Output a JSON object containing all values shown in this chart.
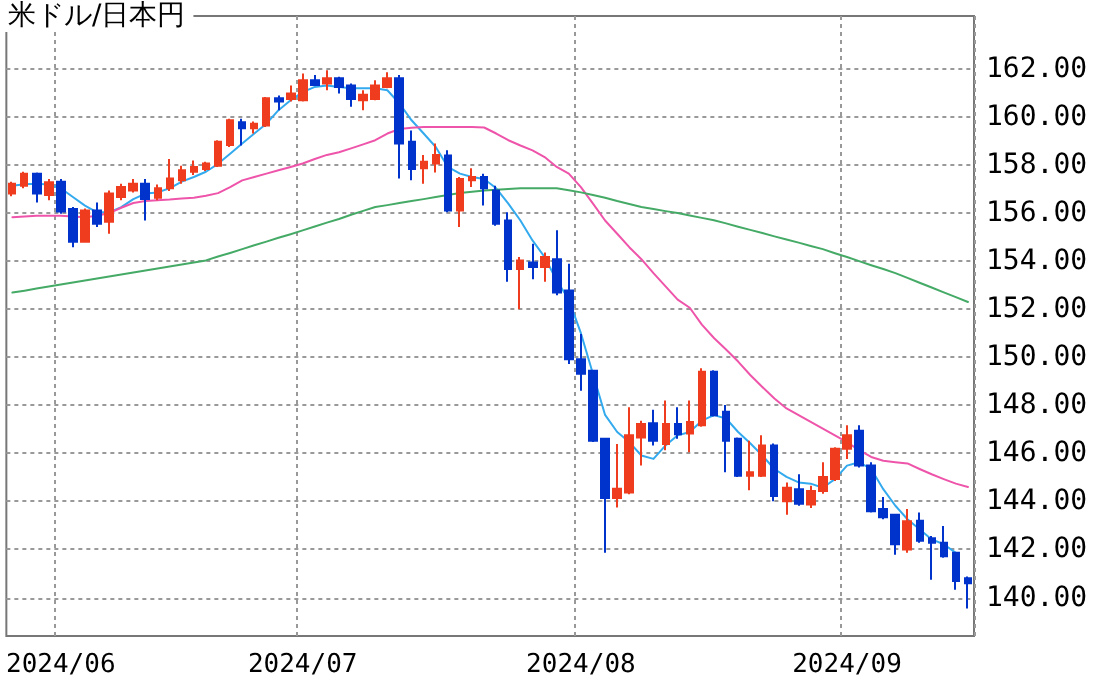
{
  "chart_data": {
    "type": "candlestick",
    "title": "米ドル/日本円",
    "categories": [
      null,
      null,
      null,
      null,
      "2024/06",
      null,
      null,
      null,
      null,
      null,
      null,
      null,
      null,
      null,
      null,
      null,
      null,
      null,
      null,
      null,
      null,
      null,
      null,
      null,
      "2024/07",
      null,
      null,
      null,
      null,
      null,
      null,
      null,
      null,
      null,
      null,
      null,
      null,
      null,
      null,
      null,
      null,
      null,
      null,
      null,
      null,
      null,
      null,
      "2024/08",
      null,
      null,
      null,
      null,
      null,
      null,
      null,
      null,
      null,
      null,
      null,
      null,
      null,
      null,
      null,
      null,
      null,
      null,
      null,
      null,
      null,
      "2024/09",
      null,
      null,
      null,
      null,
      null,
      null,
      null,
      null,
      null,
      null
    ],
    "series": [
      {
        "ohlc": [
          [
            156.81,
            157.3,
            156.7,
            157.22
          ],
          [
            157.14,
            157.72,
            157.03,
            157.64
          ],
          [
            157.64,
            157.69,
            156.44,
            156.81
          ],
          [
            156.75,
            157.42,
            156.53,
            157.28
          ],
          [
            157.3,
            157.42,
            155.97,
            156.06
          ],
          [
            156.17,
            156.25,
            154.58,
            154.81
          ],
          [
            154.81,
            156.19,
            154.78,
            156.11
          ],
          [
            156.11,
            156.44,
            155.42,
            155.56
          ],
          [
            155.64,
            156.94,
            155.14,
            156.81
          ],
          [
            156.67,
            157.22,
            156.53,
            157.08
          ],
          [
            156.94,
            157.42,
            156.86,
            157.22
          ],
          [
            157.22,
            157.42,
            155.69,
            156.58
          ],
          [
            156.64,
            157.19,
            156.53,
            157.03
          ],
          [
            157.03,
            158.25,
            156.92,
            157.44
          ],
          [
            157.36,
            157.97,
            157.22,
            157.78
          ],
          [
            157.72,
            158.19,
            157.58,
            157.92
          ],
          [
            157.83,
            158.14,
            157.75,
            158.06
          ],
          [
            157.97,
            159.03,
            157.92,
            158.97
          ],
          [
            158.83,
            159.92,
            158.75,
            159.86
          ],
          [
            159.78,
            159.92,
            158.81,
            159.53
          ],
          [
            159.53,
            159.81,
            159.31,
            159.72
          ],
          [
            159.64,
            160.83,
            159.58,
            160.78
          ],
          [
            160.78,
            160.89,
            160.28,
            160.64
          ],
          [
            160.75,
            161.31,
            160.64,
            160.97
          ],
          [
            160.69,
            161.81,
            160.64,
            161.53
          ],
          [
            161.53,
            161.75,
            161.31,
            161.33
          ],
          [
            161.39,
            161.94,
            161.11,
            161.61
          ],
          [
            161.61,
            161.67,
            160.97,
            161.25
          ],
          [
            161.31,
            161.39,
            160.42,
            160.75
          ],
          [
            160.69,
            161.11,
            160.28,
            160.92
          ],
          [
            160.75,
            161.53,
            160.69,
            161.31
          ],
          [
            161.25,
            161.86,
            161.19,
            161.61
          ],
          [
            161.61,
            161.75,
            157.44,
            158.89
          ],
          [
            158.97,
            159.44,
            157.36,
            157.83
          ],
          [
            157.86,
            158.42,
            157.22,
            158.14
          ],
          [
            158.06,
            158.89,
            157.69,
            158.42
          ],
          [
            158.39,
            158.61,
            156.03,
            156.11
          ],
          [
            156.11,
            157.5,
            155.42,
            157.42
          ],
          [
            157.36,
            157.86,
            157.08,
            157.5
          ],
          [
            157.5,
            157.64,
            156.31,
            157.03
          ],
          [
            156.94,
            157.14,
            155.47,
            155.56
          ],
          [
            155.69,
            156.03,
            153.14,
            153.67
          ],
          [
            153.67,
            154.17,
            152.0,
            154.03
          ],
          [
            153.94,
            154.72,
            153.25,
            153.75
          ],
          [
            153.75,
            154.36,
            153.14,
            154.17
          ],
          [
            154.08,
            155.28,
            152.58,
            152.69
          ],
          [
            152.78,
            153.89,
            149.72,
            149.92
          ],
          [
            149.92,
            150.97,
            148.61,
            149.31
          ],
          [
            149.44,
            149.44,
            146.47,
            146.53
          ],
          [
            146.61,
            146.61,
            141.86,
            144.14
          ],
          [
            144.14,
            146.39,
            143.75,
            144.53
          ],
          [
            144.37,
            147.92,
            144.3,
            146.75
          ],
          [
            146.66,
            147.36,
            145.49,
            147.22
          ],
          [
            147.25,
            147.81,
            146.33,
            146.53
          ],
          [
            146.39,
            148.2,
            146.13,
            147.22
          ],
          [
            147.22,
            147.92,
            146.61,
            146.8
          ],
          [
            146.83,
            148.2,
            146.05,
            147.31
          ],
          [
            147.17,
            149.54,
            147.11,
            149.4
          ],
          [
            149.4,
            149.46,
            147.53,
            147.59
          ],
          [
            147.73,
            148.01,
            145.21,
            146.53
          ],
          [
            146.61,
            146.66,
            145.02,
            145.07
          ],
          [
            145.07,
            146.53,
            144.46,
            145.21
          ],
          [
            145.07,
            146.75,
            145.02,
            146.33
          ],
          [
            146.33,
            146.41,
            144.01,
            144.23
          ],
          [
            144.01,
            144.79,
            143.45,
            144.57
          ],
          [
            144.51,
            145.13,
            143.82,
            143.9
          ],
          [
            143.87,
            144.65,
            143.73,
            144.43
          ],
          [
            144.43,
            145.63,
            144.32,
            145.02
          ],
          [
            144.93,
            146.25,
            144.85,
            146.19
          ],
          [
            146.19,
            147.17,
            145.77,
            146.75
          ],
          [
            146.94,
            147.17,
            145.41,
            145.49
          ],
          [
            145.49,
            145.63,
            143.54,
            143.59
          ],
          [
            143.68,
            144.18,
            143.26,
            143.34
          ],
          [
            143.45,
            143.45,
            141.78,
            142.22
          ],
          [
            142.0,
            143.68,
            141.86,
            143.17
          ],
          [
            143.2,
            143.54,
            142.28,
            142.36
          ],
          [
            142.47,
            142.56,
            140.74,
            142.28
          ],
          [
            142.28,
            142.98,
            141.66,
            141.72
          ],
          [
            141.86,
            141.86,
            140.32,
            140.69
          ],
          [
            140.8,
            140.88,
            139.54,
            140.6
          ]
        ],
        "colors": [
          "#f03c1e",
          "#f03c1e",
          "#0033cc",
          "#f03c1e",
          "#0033cc",
          "#0033cc",
          "#f03c1e",
          "#0033cc",
          "#f03c1e",
          "#f03c1e",
          "#f03c1e",
          "#0033cc",
          "#f03c1e",
          "#f03c1e",
          "#f03c1e",
          "#f03c1e",
          "#f03c1e",
          "#f03c1e",
          "#f03c1e",
          "#0033cc",
          "#f03c1e",
          "#f03c1e",
          "#0033cc",
          "#f03c1e",
          "#f03c1e",
          "#0033cc",
          "#f03c1e",
          "#0033cc",
          "#0033cc",
          "#f03c1e",
          "#f03c1e",
          "#f03c1e",
          "#0033cc",
          "#0033cc",
          "#f03c1e",
          "#f03c1e",
          "#0033cc",
          "#f03c1e",
          "#f03c1e",
          "#0033cc",
          "#0033cc",
          "#0033cc",
          "#f03c1e",
          "#0033cc",
          "#f03c1e",
          "#0033cc",
          "#0033cc",
          "#0033cc",
          "#0033cc",
          "#0033cc",
          "#f03c1e",
          "#f03c1e",
          "#f03c1e",
          "#0033cc",
          "#f03c1e",
          "#0033cc",
          "#f03c1e",
          "#f03c1e",
          "#0033cc",
          "#0033cc",
          "#0033cc",
          "#f03c1e",
          "#f03c1e",
          "#0033cc",
          "#f03c1e",
          "#0033cc",
          "#f03c1e",
          "#f03c1e",
          "#f03c1e",
          "#f03c1e",
          "#0033cc",
          "#0033cc",
          "#0033cc",
          "#0033cc",
          "#f03c1e",
          "#0033cc",
          "#0033cc",
          "#0033cc",
          "#0033cc",
          "#0033cc"
        ]
      },
      {
        "type": "line",
        "color": "#33aaee",
        "values": [
          157.14,
          157.2,
          157.22,
          157.19,
          157.03,
          156.67,
          156.31,
          156.03,
          156.03,
          156.25,
          156.58,
          156.81,
          156.86,
          157.03,
          157.31,
          157.5,
          157.72,
          158.05,
          158.47,
          158.89,
          159.31,
          159.72,
          160.28,
          160.69,
          161.03,
          161.25,
          161.31,
          161.25,
          161.19,
          161.19,
          161.19,
          161.11,
          160.56,
          159.86,
          159.31,
          158.75,
          157.92,
          157.64,
          157.5,
          157.42,
          157.03,
          156.39,
          155.69,
          154.86,
          154.17,
          153.19,
          152.4,
          151.0,
          149.3,
          147.6,
          146.89,
          146.47,
          145.91,
          145.77,
          146.33,
          146.75,
          146.89,
          147.36,
          147.59,
          147.45,
          146.89,
          146.42,
          145.91,
          145.35,
          145.02,
          144.79,
          144.74,
          144.57,
          144.93,
          145.49,
          145.63,
          145.35,
          144.51,
          143.82,
          143.26,
          142.84,
          142.42,
          142.22,
          141.86,
          null
        ]
      },
      {
        "type": "line",
        "color": "#ee55aa",
        "values": [
          155.83,
          155.86,
          155.89,
          155.89,
          155.89,
          155.86,
          155.83,
          155.89,
          156.0,
          156.22,
          156.42,
          156.5,
          156.53,
          156.56,
          156.61,
          156.64,
          156.72,
          156.83,
          157.08,
          157.36,
          157.5,
          157.64,
          157.78,
          157.92,
          158.06,
          158.25,
          158.42,
          158.53,
          158.69,
          158.86,
          159.03,
          159.31,
          159.5,
          159.55,
          159.58,
          159.58,
          159.58,
          159.58,
          159.58,
          159.56,
          159.31,
          159.03,
          158.81,
          158.61,
          158.33,
          157.92,
          157.64,
          157.08,
          156.39,
          155.69,
          155.14,
          154.58,
          154.08,
          153.5,
          152.95,
          152.4,
          152.06,
          151.36,
          150.8,
          150.32,
          149.82,
          149.26,
          148.76,
          148.28,
          147.87,
          147.59,
          147.31,
          147.03,
          146.75,
          146.47,
          146.13,
          145.85,
          145.69,
          145.63,
          145.58,
          145.35,
          145.13,
          144.93,
          144.74,
          144.6
        ]
      },
      {
        "type": "line",
        "color": "#44aa66",
        "values": [
          152.69,
          152.77,
          152.86,
          152.94,
          153.03,
          153.11,
          153.19,
          153.28,
          153.36,
          153.44,
          153.53,
          153.61,
          153.69,
          153.78,
          153.86,
          153.94,
          154.03,
          154.19,
          154.34,
          154.5,
          154.66,
          154.81,
          154.97,
          155.12,
          155.28,
          155.44,
          155.6,
          155.75,
          155.93,
          156.09,
          156.25,
          156.33,
          156.42,
          156.5,
          156.58,
          156.67,
          156.75,
          156.83,
          156.89,
          156.94,
          156.97,
          157.0,
          157.03,
          157.03,
          157.03,
          157.03,
          156.95,
          156.86,
          156.75,
          156.64,
          156.5,
          156.38,
          156.25,
          156.17,
          156.08,
          156.0,
          155.9,
          155.8,
          155.7,
          155.57,
          155.43,
          155.3,
          155.17,
          155.03,
          154.9,
          154.77,
          154.63,
          154.5,
          154.33,
          154.17,
          154.0,
          153.83,
          153.67,
          153.5,
          153.3,
          153.1,
          152.9,
          152.7,
          152.5,
          152.3
        ]
      }
    ],
    "ylim": [
      138.4,
      164.2
    ],
    "yticks": [
      {
        "value": 140,
        "label": "140.00"
      },
      {
        "value": 142,
        "label": "142.00"
      },
      {
        "value": 144,
        "label": "144.00"
      },
      {
        "value": 146,
        "label": "146.00"
      },
      {
        "value": 148,
        "label": "148.00"
      },
      {
        "value": 150,
        "label": "150.00"
      },
      {
        "value": 152,
        "label": "152.00"
      },
      {
        "value": 154,
        "label": "154.00"
      },
      {
        "value": 156,
        "label": "156.00"
      },
      {
        "value": 158,
        "label": "158.00"
      },
      {
        "value": 160,
        "label": "160.00"
      },
      {
        "value": 162,
        "label": "162.00"
      }
    ],
    "grid": true,
    "marker": "none",
    "line_style": "solid"
  }
}
